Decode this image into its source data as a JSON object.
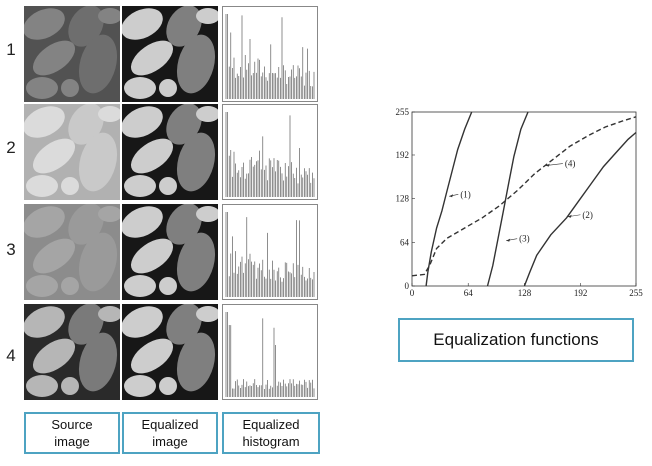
{
  "rows": [
    {
      "num": "1",
      "source_tone": "#6e6e6e",
      "source_contrast": 0.35,
      "hist_level": 0.55
    },
    {
      "num": "2",
      "source_tone": "#c9c9c9",
      "source_contrast": 0.3,
      "hist_level": 0.5
    },
    {
      "num": "3",
      "source_tone": "#9a9a9a",
      "source_contrast": 0.18,
      "hist_level": 0.55
    },
    {
      "num": "4",
      "source_tone": "#7a7a7a",
      "source_contrast": 1.0,
      "hist_level": 0.15
    }
  ],
  "labels": {
    "source": "Source\nimage",
    "equalized_image": "Equalized\nimage",
    "equalized_histogram": "Equalized\nhistogram"
  },
  "equalization_title": "Equalization functions",
  "colors": {
    "accent_border": "#4ea3c2"
  },
  "chart_data": {
    "type": "line",
    "xlim": [
      0,
      255
    ],
    "ylim": [
      0,
      255
    ],
    "xticks": [
      "0",
      "64",
      "128",
      "192",
      "255"
    ],
    "yticks": [
      "0",
      "64",
      "128",
      "192",
      "255"
    ],
    "series": [
      {
        "name": "(1)",
        "style": "solid",
        "points": [
          [
            16,
            0
          ],
          [
            18,
            20
          ],
          [
            22,
            50
          ],
          [
            28,
            85
          ],
          [
            34,
            110
          ],
          [
            40,
            140
          ],
          [
            46,
            170
          ],
          [
            52,
            200
          ],
          [
            60,
            230
          ],
          [
            68,
            255
          ]
        ]
      },
      {
        "name": "(2)",
        "style": "solid",
        "points": [
          [
            128,
            0
          ],
          [
            134,
            20
          ],
          [
            142,
            45
          ],
          [
            158,
            75
          ],
          [
            176,
            100
          ],
          [
            190,
            125
          ],
          [
            204,
            150
          ],
          [
            218,
            175
          ],
          [
            232,
            195
          ],
          [
            246,
            215
          ],
          [
            255,
            225
          ]
        ]
      },
      {
        "name": "(3)",
        "style": "solid",
        "points": [
          [
            86,
            0
          ],
          [
            92,
            30
          ],
          [
            98,
            70
          ],
          [
            104,
            110
          ],
          [
            110,
            150
          ],
          [
            116,
            190
          ],
          [
            124,
            230
          ],
          [
            132,
            255
          ]
        ]
      },
      {
        "name": "(4)",
        "style": "dashed",
        "points": [
          [
            0,
            15
          ],
          [
            14,
            17
          ],
          [
            20,
            30
          ],
          [
            28,
            55
          ],
          [
            40,
            70
          ],
          [
            60,
            85
          ],
          [
            80,
            100
          ],
          [
            100,
            118
          ],
          [
            120,
            140
          ],
          [
            140,
            165
          ],
          [
            160,
            185
          ],
          [
            180,
            205
          ],
          [
            200,
            220
          ],
          [
            220,
            233
          ],
          [
            240,
            242
          ],
          [
            255,
            248
          ]
        ]
      }
    ],
    "annotations": [
      {
        "text": "(1)",
        "at": [
          40,
          130
        ],
        "label": [
          55,
          130
        ]
      },
      {
        "text": "(2)",
        "at": [
          175,
          100
        ],
        "label": [
          194,
          100
        ]
      },
      {
        "text": "(3)",
        "at": [
          105,
          65
        ],
        "label": [
          122,
          65
        ]
      },
      {
        "text": "(4)",
        "at": [
          150,
          175
        ],
        "label": [
          174,
          175
        ]
      }
    ]
  }
}
